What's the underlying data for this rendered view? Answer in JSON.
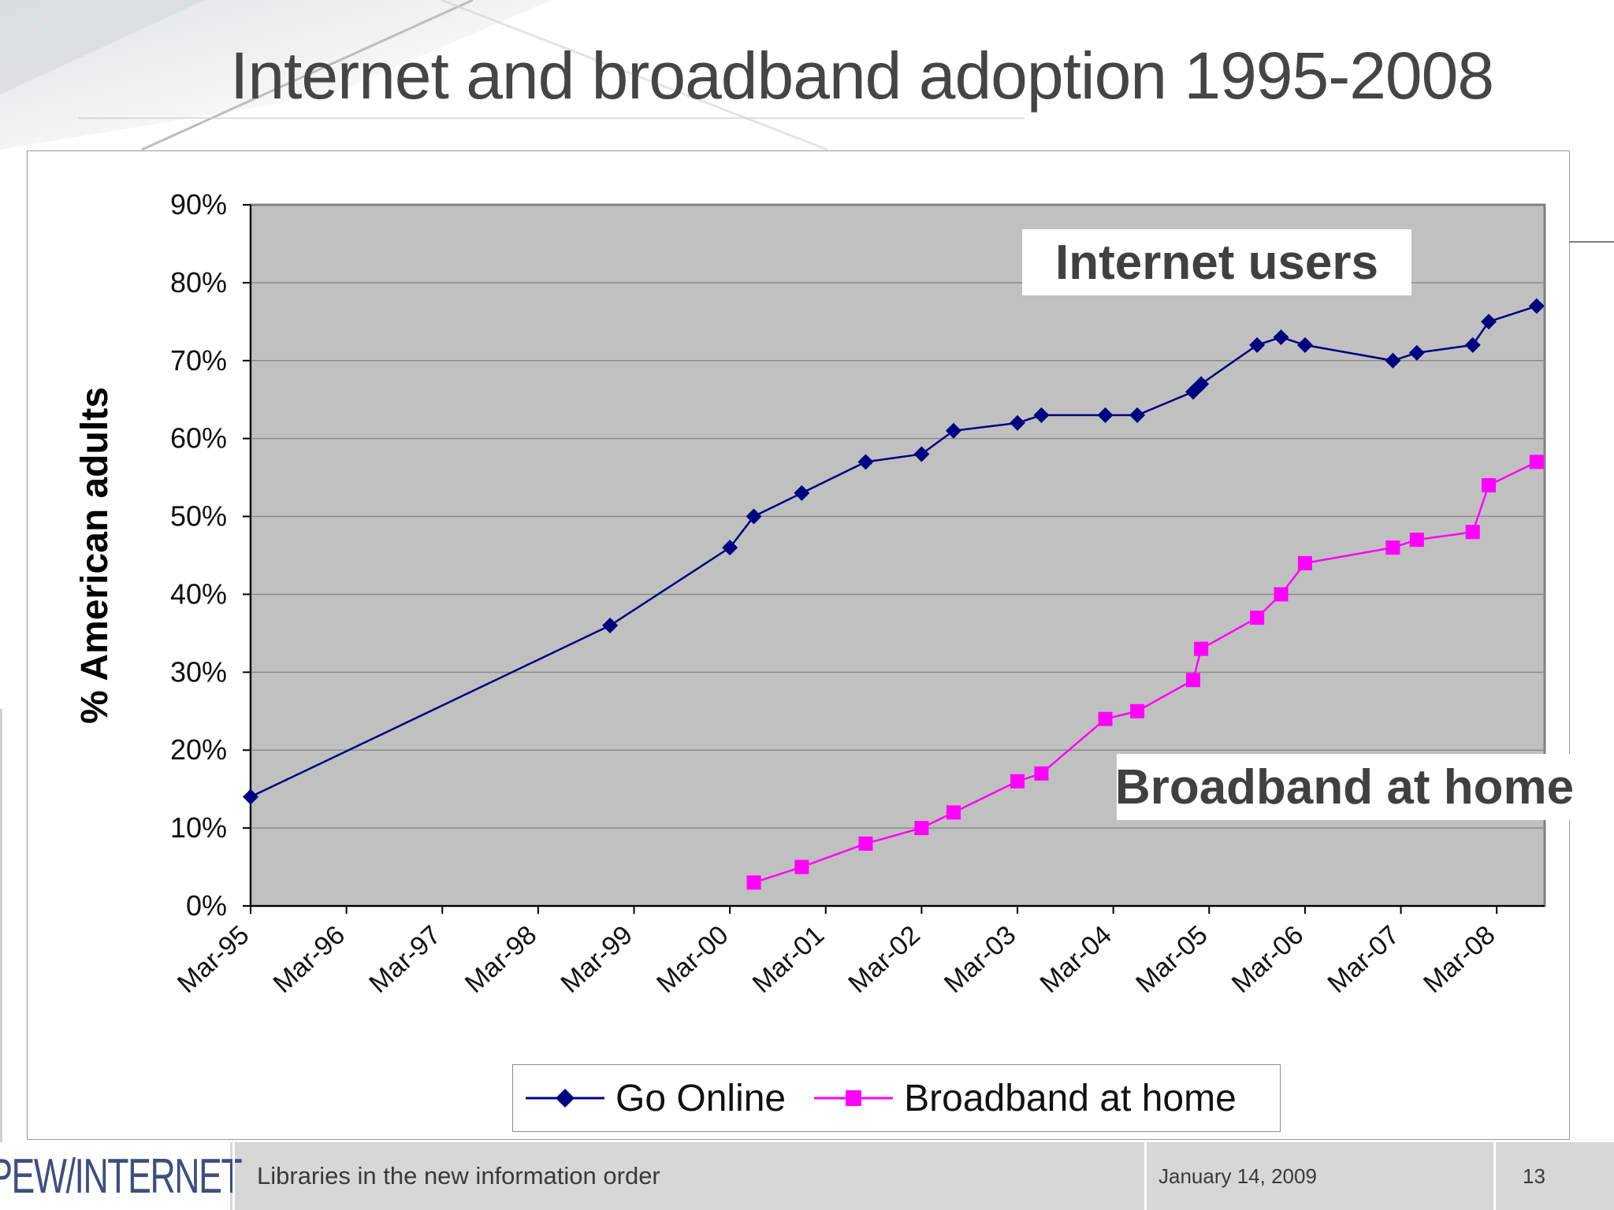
{
  "slide": {
    "title": "Internet and broadband adoption 1995-2008"
  },
  "annotations": {
    "internet_users": "Internet users",
    "broadband_at_home": "Broadband at home"
  },
  "footer": {
    "logo": "PEW/INTERNET",
    "subtitle": "Libraries in the new information order",
    "date": "January 14, 2009",
    "page_number": "13"
  },
  "colors": {
    "plot_background": "#c0c0c0",
    "go_online": "#000080",
    "broadband": "#ff00ff"
  },
  "chart_data": {
    "type": "line",
    "title": "",
    "ylabel": "% American adults",
    "xlabel": "",
    "ylim": [
      0,
      90
    ],
    "yticks": [
      "0%",
      "10%",
      "20%",
      "30%",
      "40%",
      "50%",
      "60%",
      "70%",
      "80%",
      "90%"
    ],
    "x_range": [
      "1995-03",
      "2008-09"
    ],
    "xticks": [
      "Mar-95",
      "Mar-96",
      "Mar-97",
      "Mar-98",
      "Mar-99",
      "Mar-00",
      "Mar-01",
      "Mar-02",
      "Mar-03",
      "Mar-04",
      "Mar-05",
      "Mar-06",
      "Mar-07",
      "Mar-08"
    ],
    "grid": "horizontal",
    "legend_position": "bottom",
    "series": [
      {
        "name": "Go Online",
        "marker": "diamond",
        "color": "#000080",
        "points": [
          [
            "1995-03",
            14
          ],
          [
            "1998-12",
            36
          ],
          [
            "2000-03",
            46
          ],
          [
            "2000-06",
            50
          ],
          [
            "2000-12",
            53
          ],
          [
            "2001-08",
            57
          ],
          [
            "2002-03",
            58
          ],
          [
            "2002-07",
            61
          ],
          [
            "2003-03",
            62
          ],
          [
            "2003-06",
            63
          ],
          [
            "2004-02",
            63
          ],
          [
            "2004-06",
            63
          ],
          [
            "2005-01",
            66
          ],
          [
            "2005-02",
            67
          ],
          [
            "2005-09",
            72
          ],
          [
            "2005-12",
            73
          ],
          [
            "2006-03",
            72
          ],
          [
            "2007-02",
            70
          ],
          [
            "2007-05",
            71
          ],
          [
            "2007-12",
            72
          ],
          [
            "2008-02",
            75
          ],
          [
            "2008-08",
            77
          ]
        ]
      },
      {
        "name": "Broadband at home",
        "marker": "square",
        "color": "#ff00ff",
        "points": [
          [
            "2000-06",
            3
          ],
          [
            "2000-12",
            5
          ],
          [
            "2001-08",
            8
          ],
          [
            "2002-03",
            10
          ],
          [
            "2002-07",
            12
          ],
          [
            "2003-03",
            16
          ],
          [
            "2003-06",
            17
          ],
          [
            "2004-02",
            24
          ],
          [
            "2004-06",
            25
          ],
          [
            "2005-01",
            29
          ],
          [
            "2005-02",
            33
          ],
          [
            "2005-09",
            37
          ],
          [
            "2005-12",
            40
          ],
          [
            "2006-03",
            44
          ],
          [
            "2007-02",
            46
          ],
          [
            "2007-05",
            47
          ],
          [
            "2007-12",
            48
          ],
          [
            "2008-02",
            54
          ],
          [
            "2008-08",
            57
          ]
        ]
      }
    ]
  }
}
